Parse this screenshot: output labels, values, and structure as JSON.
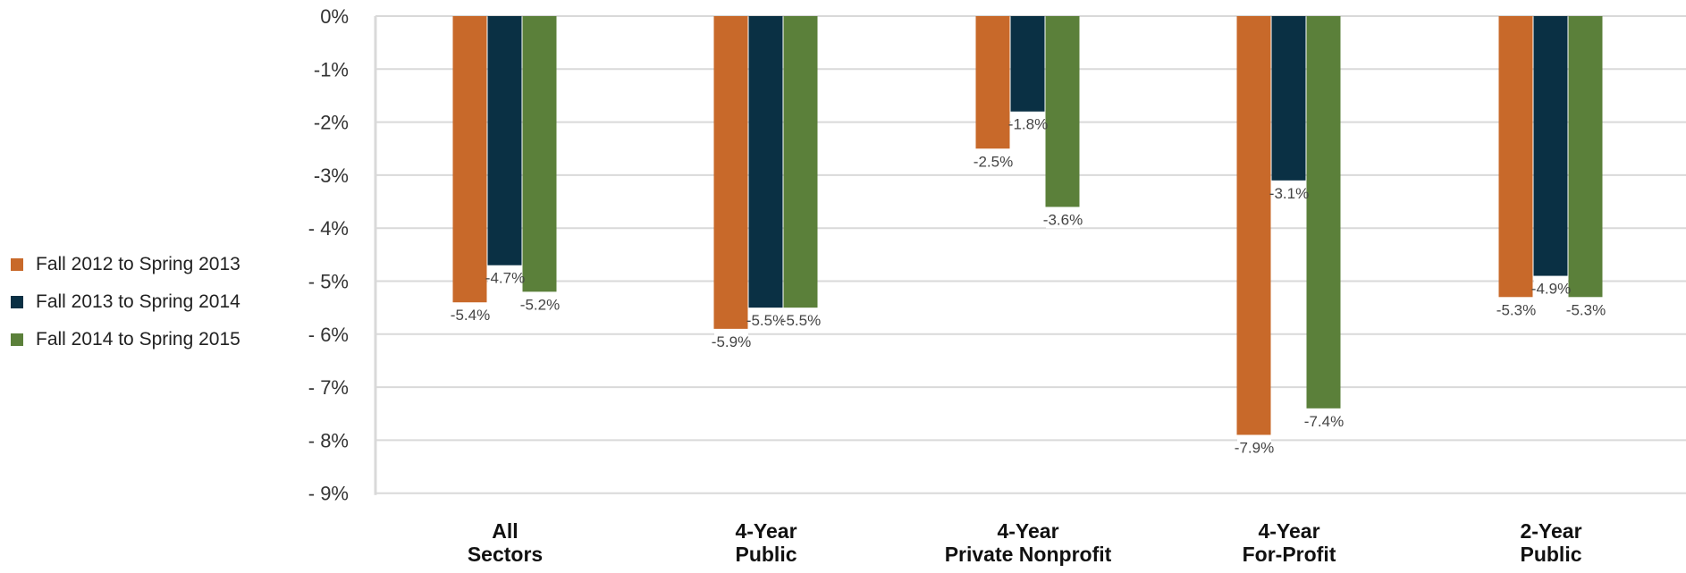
{
  "chart_data": {
    "type": "bar",
    "categories": [
      [
        "All",
        "Sectors"
      ],
      [
        "4-Year",
        "Public"
      ],
      [
        "4-Year",
        "Private Nonprofit"
      ],
      [
        "4-Year",
        "For-Profit"
      ],
      [
        "2-Year",
        "Public"
      ]
    ],
    "series": [
      {
        "name": "Fall 2012 to Spring 2013",
        "color": "#c8692a",
        "values": [
          -5.4,
          -5.9,
          -2.5,
          -7.9,
          -5.3
        ],
        "labels": [
          "-5.4%",
          "-5.9%",
          "-2.5%",
          "-7.9%",
          "-5.3%"
        ]
      },
      {
        "name": "Fall 2013 to Spring 2014",
        "color": "#0a3044",
        "values": [
          -4.7,
          -5.5,
          -1.8,
          -3.1,
          -4.9
        ],
        "labels": [
          "-4.7%",
          "-5.5%",
          "-1.8%",
          "-3.1%",
          "-4.9%"
        ]
      },
      {
        "name": "Fall 2014 to Spring 2015",
        "color": "#5b803a",
        "values": [
          -5.2,
          -5.5,
          -3.6,
          -7.4,
          -5.3
        ],
        "labels": [
          "-5.2%",
          "-5.5%",
          "-3.6%",
          "-7.4%",
          "-5.3%"
        ]
      }
    ],
    "yticks": [
      0,
      -1,
      -2,
      -3,
      -4,
      -5,
      -6,
      -7,
      -8,
      -9
    ],
    "ytick_labels": [
      "0%",
      "-1%",
      "-2%",
      "-3%",
      "- 4%",
      "- 5%",
      "- 6%",
      "- 7%",
      "- 8%",
      "- 9%"
    ],
    "ylim": [
      -9,
      0
    ],
    "grid": true,
    "legend_position": "left"
  }
}
